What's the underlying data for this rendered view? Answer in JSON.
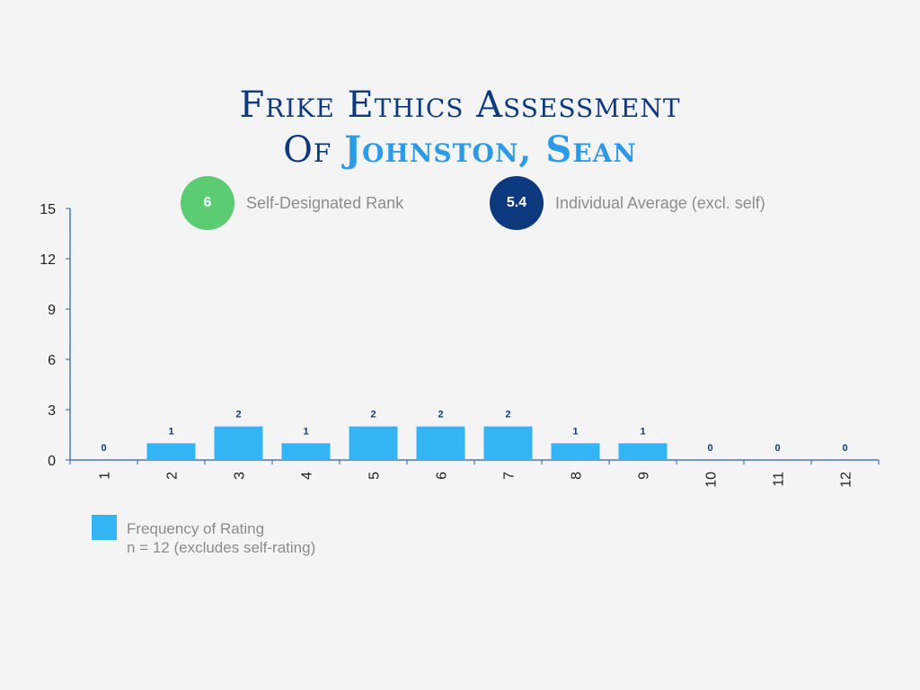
{
  "title": {
    "line1": "Frike Ethics Assessment",
    "line2_prefix": "Of",
    "subject": "Johnston, Sean"
  },
  "self_rank": {
    "value": "6",
    "label": "Self-Designated Rank",
    "color": "#5ccc72"
  },
  "individual_average": {
    "value": "5.4",
    "label": "Individual Average (excl. self)",
    "color": "#0d3a7e"
  },
  "legend": {
    "series_name": "Frequency of Rating",
    "note": "n = 12 (excludes self-rating)",
    "color": "#33b5f5"
  },
  "chart_data": {
    "type": "bar",
    "categories": [
      "1",
      "2",
      "3",
      "4",
      "5",
      "6",
      "7",
      "8",
      "9",
      "10",
      "11",
      "12"
    ],
    "series": [
      {
        "name": "Frequency of Rating",
        "values": [
          0,
          1,
          2,
          1,
          2,
          2,
          2,
          1,
          1,
          0,
          0,
          0
        ]
      }
    ],
    "yticks": [
      0,
      3,
      6,
      9,
      12,
      15
    ],
    "ylim": [
      0,
      15
    ],
    "grid": false,
    "legend_position": "bottom-left",
    "bar_color": "#33b5f5",
    "label_color": "#0d3a7e"
  }
}
